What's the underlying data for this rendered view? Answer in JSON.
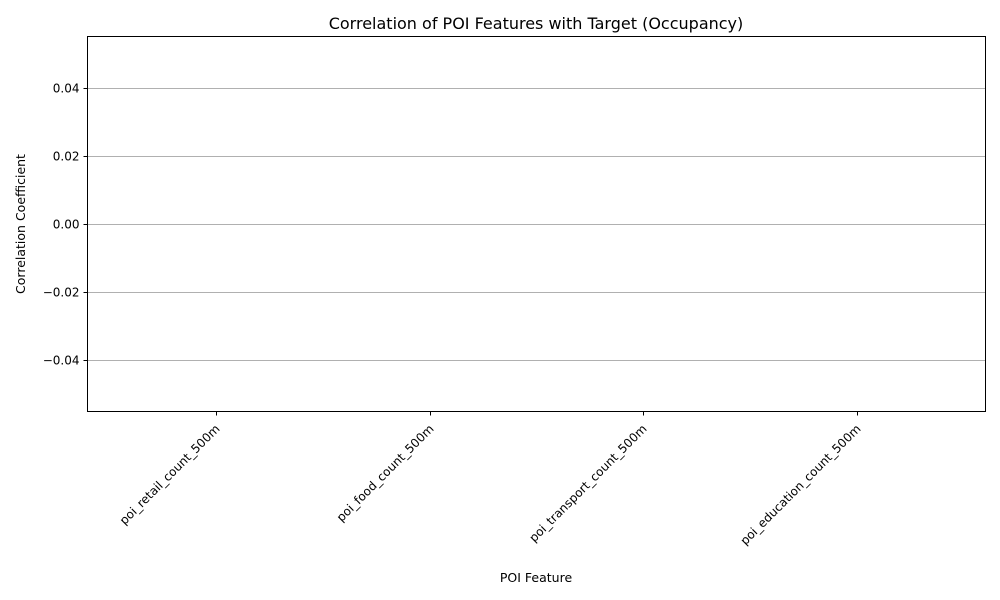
{
  "chart_data": {
    "type": "bar",
    "title": "Correlation of POI Features with Target (Occupancy)",
    "xlabel": "POI Feature",
    "ylabel": "Correlation Coefficient",
    "categories": [
      "poi_retail_count_500m",
      "poi_food_count_500m",
      "poi_transport_count_500m",
      "poi_education_count_500m"
    ],
    "values": [
      null,
      null,
      null,
      null
    ],
    "ylim": [
      -0.055,
      0.055
    ],
    "yticks": [
      -0.04,
      -0.02,
      0.0,
      0.02,
      0.04
    ],
    "ytick_labels": [
      "−0.04",
      "−0.02",
      "0.00",
      "0.02",
      "0.04"
    ],
    "grid": "y-major",
    "legend": "none"
  }
}
